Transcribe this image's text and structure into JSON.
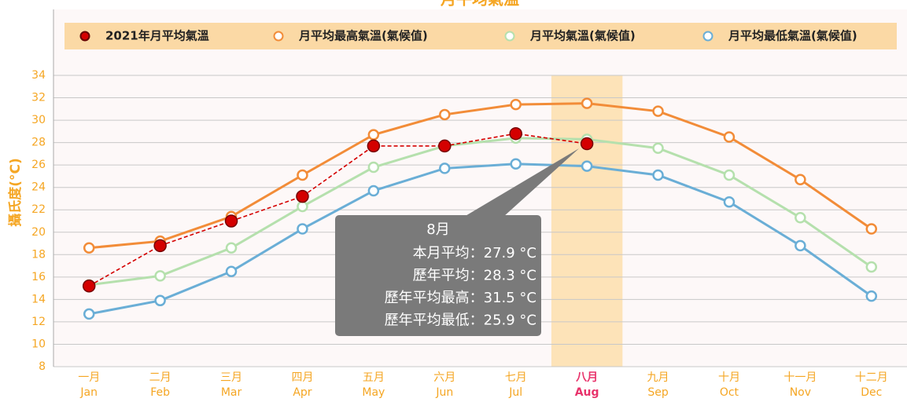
{
  "chart_data": {
    "type": "line",
    "title": "月平均氣溫",
    "ylabel": "攝氏度(°C)",
    "categories": [
      "一月",
      "二月",
      "三月",
      "四月",
      "五月",
      "六月",
      "七月",
      "八月",
      "九月",
      "十月",
      "十一月",
      "十二月"
    ],
    "categories_en": [
      "Jan",
      "Feb",
      "Mar",
      "Apr",
      "May",
      "Jun",
      "Jul",
      "Aug",
      "Sep",
      "Oct",
      "Nov",
      "Dec"
    ],
    "highlight_category": 7,
    "ylim": [
      8,
      34
    ],
    "yticks": [
      8,
      10,
      12,
      14,
      16,
      18,
      20,
      22,
      24,
      26,
      28,
      30,
      32,
      34
    ],
    "grid": true,
    "series": [
      {
        "name": "2021年月平均氣溫",
        "color": "#d40000",
        "dashed": true,
        "values": [
          15.2,
          18.8,
          21.0,
          23.2,
          27.7,
          27.7,
          28.8,
          27.9,
          null,
          null,
          null,
          null
        ]
      },
      {
        "name": "月平均最高氣溫(氣候值)",
        "color": "#f28c38",
        "values": [
          18.6,
          19.2,
          21.4,
          25.1,
          28.7,
          30.5,
          31.4,
          31.5,
          30.8,
          28.5,
          24.7,
          20.3
        ]
      },
      {
        "name": "月平均氣溫(氣候值)",
        "color": "#b5e0ad",
        "values": [
          15.3,
          16.1,
          18.6,
          22.3,
          25.8,
          27.7,
          28.4,
          28.3,
          27.5,
          25.1,
          21.3,
          16.9
        ]
      },
      {
        "name": "月平均最低氣溫(氣候值)",
        "color": "#6aaed6",
        "values": [
          12.7,
          13.9,
          16.5,
          20.3,
          23.7,
          25.7,
          26.1,
          25.9,
          25.1,
          22.7,
          18.8,
          14.3
        ]
      }
    ],
    "tooltip": {
      "title": "8月",
      "lines": [
        "本月平均：27.9 °C",
        "歷年平均：28.3 °C",
        "歷年平均最高：31.5 °C",
        "歷年平均最低：25.9 °C"
      ]
    }
  }
}
